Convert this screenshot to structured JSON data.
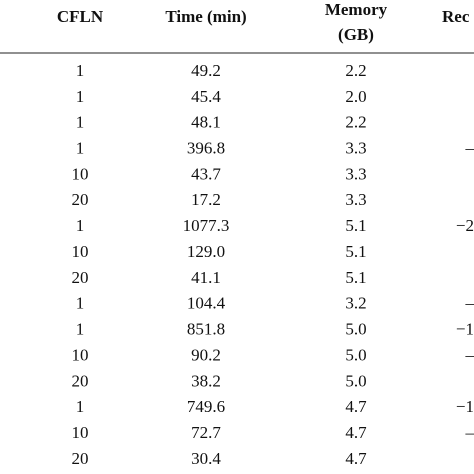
{
  "table": {
    "header": [
      "CFLN",
      "Time (min)",
      [
        "Memory",
        "(GB)"
      ],
      "Rec"
    ],
    "rows": [
      [
        "1",
        "49.2",
        "2.2"
      ],
      [
        "1",
        "45.4",
        "2.0"
      ],
      [
        "1",
        "48.1",
        "2.2"
      ],
      [
        "1",
        "396.8",
        "3.3",
        "–"
      ],
      [
        "10",
        "43.7",
        "3.3"
      ],
      [
        "20",
        "17.2",
        "3.3"
      ],
      [
        "1",
        "1077.3",
        "5.1",
        "−2"
      ],
      [
        "10",
        "129.0",
        "5.1"
      ],
      [
        "20",
        "41.1",
        "5.1"
      ],
      [
        "1",
        "104.4",
        "3.2",
        "–"
      ],
      [
        "1",
        "851.8",
        "5.0",
        "−1"
      ],
      [
        "10",
        "90.2",
        "5.0",
        "–"
      ],
      [
        "20",
        "38.2",
        "5.0"
      ],
      [
        "1",
        "749.6",
        "4.7",
        "−1"
      ],
      [
        "10",
        "72.7",
        "4.7",
        "–"
      ],
      [
        "20",
        "30.4",
        "4.7"
      ]
    ]
  }
}
